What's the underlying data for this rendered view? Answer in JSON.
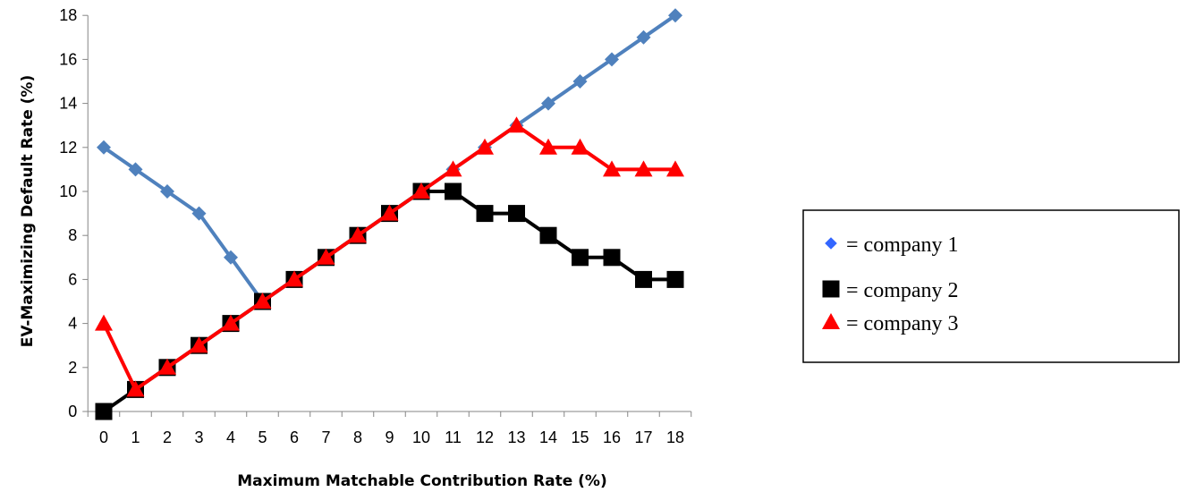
{
  "chart_data": {
    "type": "line",
    "title": "",
    "xlabel": "Maximum Matchable Contribution Rate (%)",
    "ylabel": "EV-Maximizing Default Rate (%)",
    "x": [
      0,
      1,
      2,
      3,
      4,
      5,
      6,
      7,
      8,
      9,
      10,
      11,
      12,
      13,
      14,
      15,
      16,
      17,
      18
    ],
    "xlim": [
      0,
      18
    ],
    "ylim": [
      0,
      18
    ],
    "yticks": [
      0,
      2,
      4,
      6,
      8,
      10,
      12,
      14,
      16,
      18
    ],
    "grid": false,
    "legend_position": "right",
    "series": [
      {
        "name": "= company 1",
        "line_color": "#4F81BD",
        "marker_color": "#4F81BD",
        "legend_marker_color": "#3366FF",
        "marker": "diamond",
        "values": [
          12,
          11,
          10,
          9,
          7,
          5,
          6,
          7,
          8,
          9,
          10,
          11,
          12,
          13,
          14,
          15,
          16,
          17,
          18
        ]
      },
      {
        "name": "= company 2",
        "line_color": "#000000",
        "marker_color": "#000000",
        "legend_marker_color": "#000000",
        "marker": "square",
        "values": [
          0,
          1,
          2,
          3,
          4,
          5,
          6,
          7,
          8,
          9,
          10,
          10,
          9,
          9,
          8,
          7,
          7,
          6,
          6
        ]
      },
      {
        "name": "= company 3",
        "line_color": "#FF0000",
        "marker_color": "#FF0000",
        "legend_marker_color": "#FF0000",
        "marker": "triangle",
        "values": [
          4,
          1,
          2,
          3,
          4,
          5,
          6,
          7,
          8,
          9,
          10,
          11,
          12,
          13,
          12,
          12,
          11,
          11,
          11
        ]
      }
    ]
  }
}
